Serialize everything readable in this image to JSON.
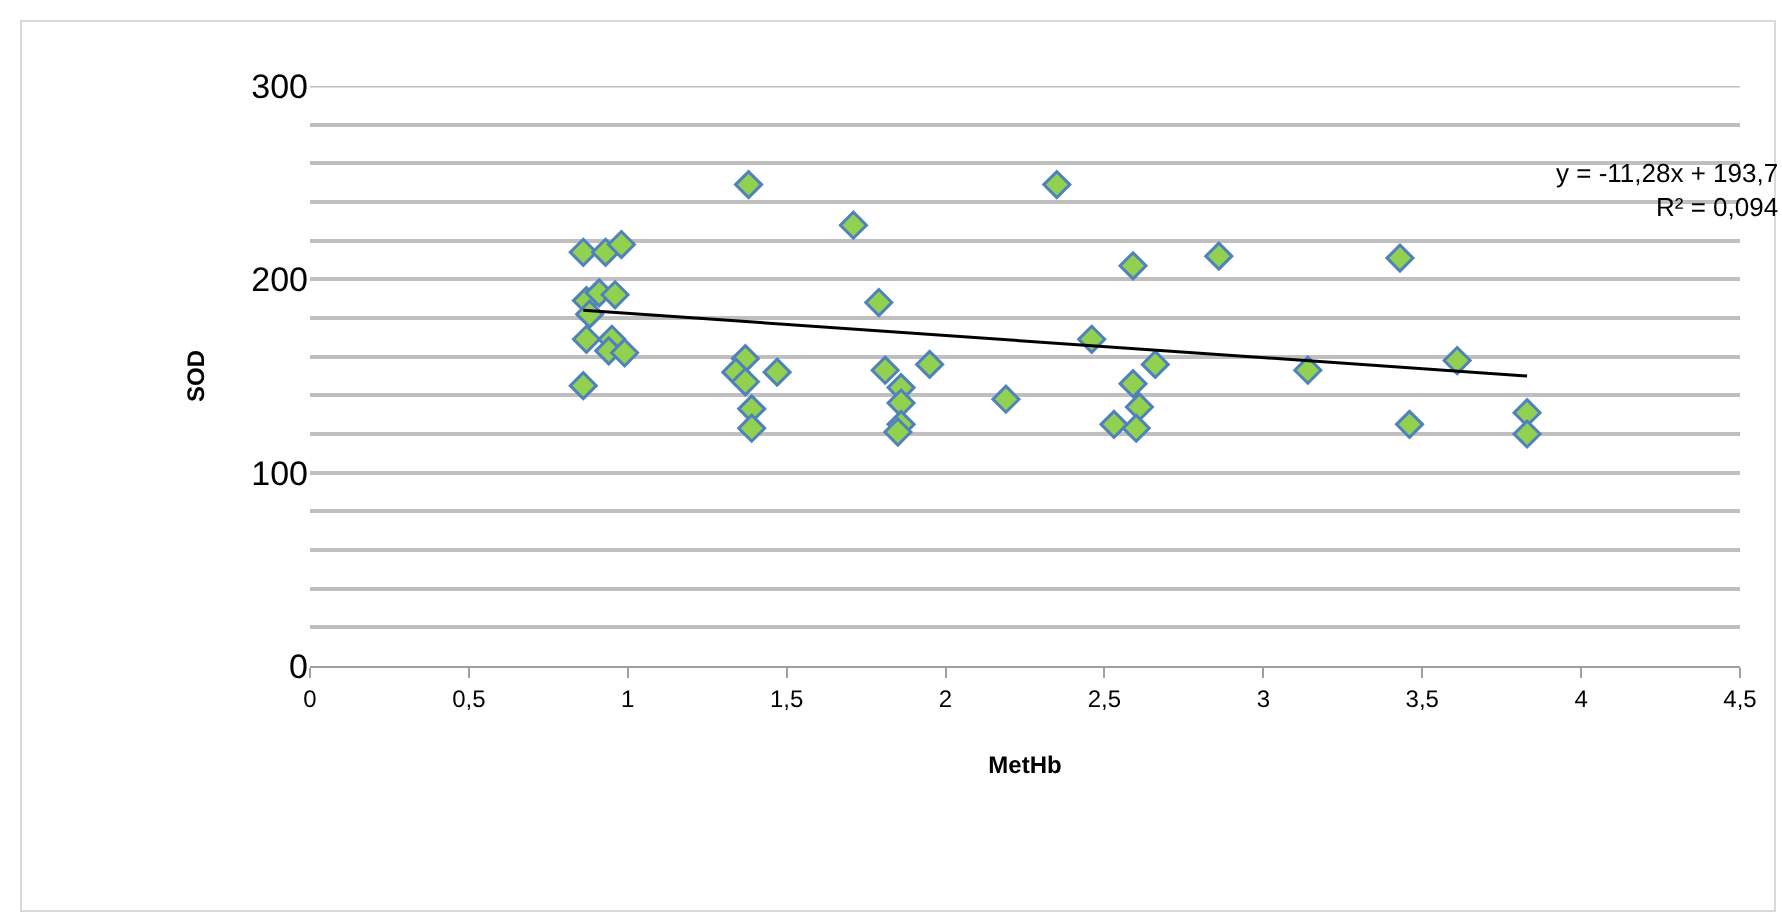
{
  "chart_data": {
    "type": "scatter",
    "xlabel": "MetHb",
    "ylabel": "SOD",
    "series": [
      {
        "type": "scatter",
        "color": "#92d050",
        "x": [
          0.86,
          0.93,
          0.98,
          0.87,
          0.91,
          0.96,
          0.88,
          0.87,
          0.95,
          0.94,
          0.99,
          0.86,
          1.38,
          1.37,
          1.34,
          1.37,
          1.47,
          1.39,
          1.39,
          1.71,
          1.79,
          1.81,
          1.86,
          1.86,
          1.86,
          1.85,
          1.95,
          2.19,
          2.35,
          2.46,
          2.59,
          2.59,
          2.61,
          2.53,
          2.6,
          2.66,
          2.86,
          3.14,
          3.43,
          3.46,
          3.61,
          3.83,
          3.83
        ],
        "values": [
          214,
          214,
          218,
          189,
          193,
          192,
          182,
          169,
          169,
          163,
          162,
          145,
          249,
          159,
          152,
          147,
          152,
          133,
          123,
          228,
          188,
          153,
          144,
          136,
          125,
          121,
          156,
          138,
          249,
          169,
          207,
          146,
          134,
          125,
          123,
          156,
          212,
          153,
          211,
          125,
          158,
          131,
          120
        ]
      },
      {
        "type": "line",
        "color": "#000000",
        "marker": "none",
        "x": [
          0.86,
          3.83
        ],
        "values": [
          184,
          150
        ]
      }
    ],
    "xlim": [
      0,
      4.5
    ],
    "xticks": [
      0,
      {
        "value": 0.5,
        "label": "0,5"
      },
      1,
      {
        "value": 1.5,
        "label": "1,5"
      },
      2,
      {
        "value": 2.5,
        "label": "2,5"
      },
      3,
      {
        "value": 3.5,
        "label": "3,5"
      },
      4,
      {
        "value": 4.5,
        "label": "4,5"
      }
    ],
    "ylim": [
      0,
      300
    ],
    "yticks": [
      0,
      {
        "value": 20,
        "label": null
      },
      {
        "value": 40,
        "label": null
      },
      {
        "value": 60,
        "label": null
      },
      {
        "value": 80,
        "label": null
      },
      100,
      {
        "value": 120,
        "label": null
      },
      {
        "value": 140,
        "label": null
      },
      {
        "value": 160,
        "label": null
      },
      {
        "value": 180,
        "label": null
      },
      200,
      {
        "value": 220,
        "label": null
      },
      {
        "value": 240,
        "label": null
      },
      {
        "value": 260,
        "label": null
      },
      {
        "value": 280,
        "label": null
      },
      300
    ],
    "grid": "y",
    "marker": "diamond",
    "line_style": "solid",
    "legend": false,
    "annotations": [
      "y = -11,28x + 193,7\nR² = 0,094"
    ]
  }
}
